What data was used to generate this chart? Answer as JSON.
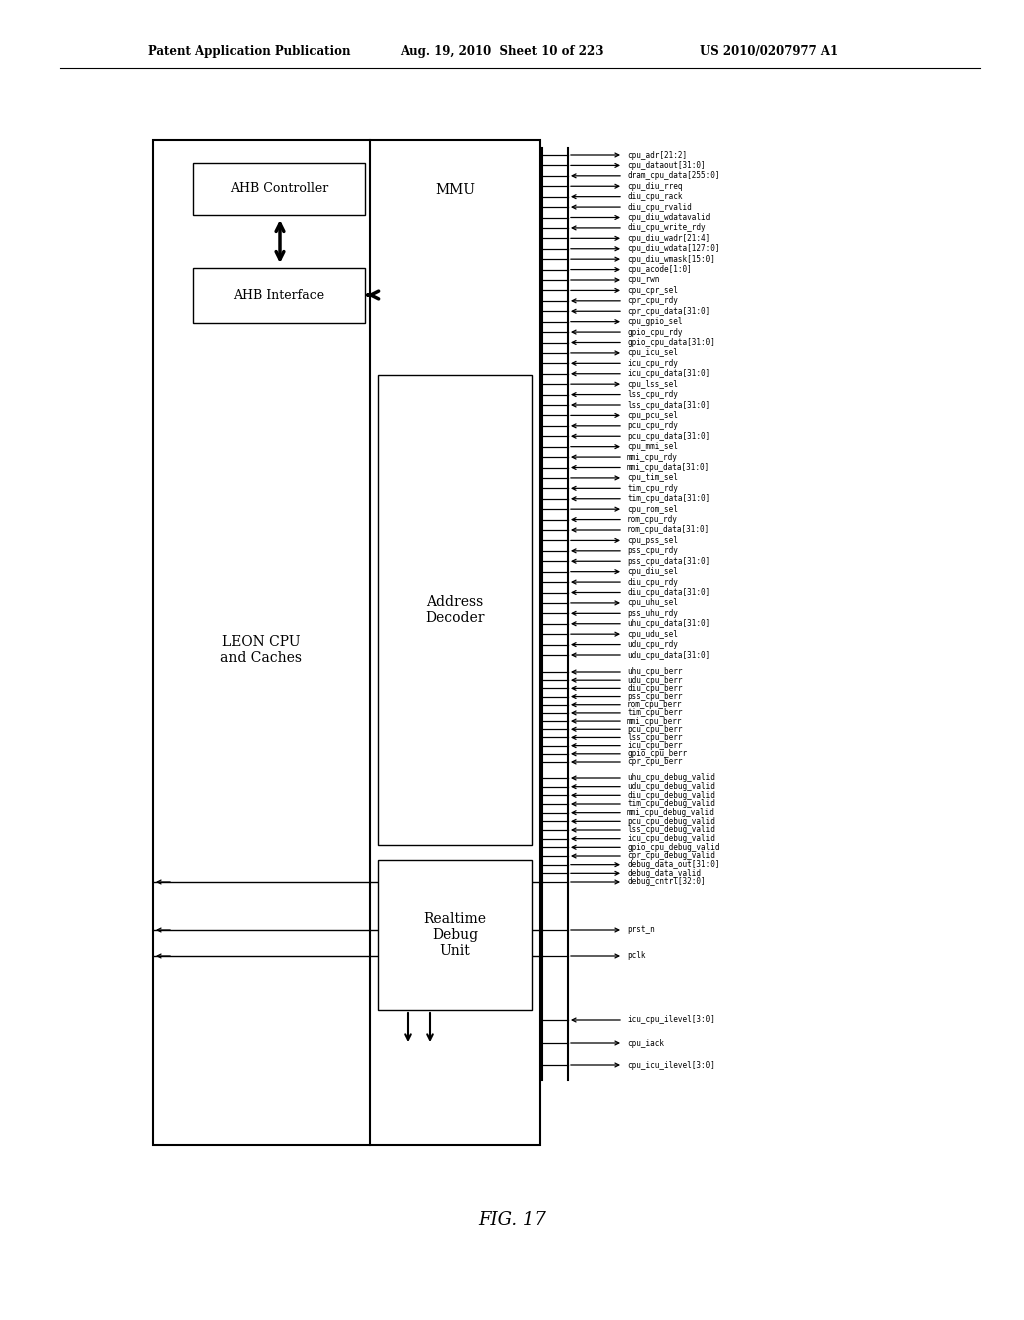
{
  "header_left": "Patent Application Publication",
  "header_mid": "Aug. 19, 2010  Sheet 10 of 223",
  "header_right": "US 2010/0207977 A1",
  "figure_label": "FIG. 17",
  "background_color": "#ffffff",
  "signals": [
    [
      "cpu_adr[21:2]",
      "right"
    ],
    [
      "cpu_dataout[31:0]",
      "right"
    ],
    [
      "dram_cpu_data[255:0]",
      "left"
    ],
    [
      "cpu_diu_rreq",
      "right"
    ],
    [
      "diu_cpu_rack",
      "left"
    ],
    [
      "diu_cpu_rvalid",
      "left"
    ],
    [
      "cpu_diu_wdatavalid",
      "right"
    ],
    [
      "diu_cpu_write_rdy",
      "left"
    ],
    [
      "cpu_diu_wadr[21:4]",
      "right"
    ],
    [
      "cpu_diu_wdata[127:0]",
      "right"
    ],
    [
      "cpu_diu_wmask[15:0]",
      "right"
    ],
    [
      "cpu_acode[1:0]",
      "right"
    ],
    [
      "cpu_rwn",
      "right"
    ],
    [
      "cpu_cpr_sel",
      "right"
    ],
    [
      "cpr_cpu_rdy",
      "left"
    ],
    [
      "cpr_cpu_data[31:0]",
      "left"
    ],
    [
      "cpu_gpio_sel",
      "right"
    ],
    [
      "gpio_cpu_rdy",
      "left"
    ],
    [
      "gpio_cpu_data[31:0]",
      "left"
    ],
    [
      "cpu_icu_sel",
      "right"
    ],
    [
      "icu_cpu_rdy",
      "left"
    ],
    [
      "icu_cpu_data[31:0]",
      "left"
    ],
    [
      "cpu_lss_sel",
      "right"
    ],
    [
      "lss_cpu_rdy",
      "left"
    ],
    [
      "lss_cpu_data[31:0]",
      "left"
    ],
    [
      "cpu_pcu_sel",
      "right"
    ],
    [
      "pcu_cpu_rdy",
      "left"
    ],
    [
      "pcu_cpu_data[31:0]",
      "left"
    ],
    [
      "cpu_mmi_sel",
      "right"
    ],
    [
      "mmi_cpu_rdy",
      "left"
    ],
    [
      "mmi_cpu_data[31:0]",
      "left"
    ],
    [
      "cpu_tim_sel",
      "right"
    ],
    [
      "tim_cpu_rdy",
      "left"
    ],
    [
      "tim_cpu_data[31:0]",
      "left"
    ],
    [
      "cpu_rom_sel",
      "right"
    ],
    [
      "rom_cpu_rdy",
      "left"
    ],
    [
      "rom_cpu_data[31:0]",
      "left"
    ],
    [
      "cpu_pss_sel",
      "right"
    ],
    [
      "pss_cpu_rdy",
      "left"
    ],
    [
      "pss_cpu_data[31:0]",
      "left"
    ],
    [
      "cpu_diu_sel",
      "right"
    ],
    [
      "diu_cpu_rdy",
      "left"
    ],
    [
      "diu_cpu_data[31:0]",
      "left"
    ],
    [
      "cpu_uhu_sel",
      "right"
    ],
    [
      "pss_uhu_rdy",
      "left"
    ],
    [
      "uhu_cpu_data[31:0]",
      "left"
    ],
    [
      "cpu_udu_sel",
      "right"
    ],
    [
      "udu_cpu_rdy",
      "left"
    ],
    [
      "udu_cpu_data[31:0]",
      "left"
    ],
    [
      "uhu_cpu_berr",
      "left"
    ],
    [
      "udu_cpu_berr",
      "left"
    ],
    [
      "diu_cpu_berr",
      "left"
    ],
    [
      "pss_cpu_berr",
      "left"
    ],
    [
      "rom_cpu_berr",
      "left"
    ],
    [
      "tim_cpu_berr",
      "left"
    ],
    [
      "mmi_cpu_berr",
      "left"
    ],
    [
      "pcu_cpu_berr",
      "left"
    ],
    [
      "lss_cpu_berr",
      "left"
    ],
    [
      "icu_cpu_berr",
      "left"
    ],
    [
      "gpio_cpu_berr",
      "left"
    ],
    [
      "cpr_cpu_berr",
      "left"
    ],
    [
      "uhu_cpu_debug_valid",
      "left"
    ],
    [
      "udu_cpu_debug_valid",
      "left"
    ],
    [
      "diu_cpu_debug_valid",
      "left"
    ],
    [
      "tim_cpu_debug_valid",
      "left"
    ],
    [
      "mmi_cpu_debug_valid",
      "left"
    ],
    [
      "pcu_cpu_debug_valid",
      "left"
    ],
    [
      "lss_cpu_debug_valid",
      "left"
    ],
    [
      "icu_cpu_debug_valid",
      "left"
    ],
    [
      "gpio_cpu_debug_valid",
      "left"
    ],
    [
      "cpr_cpu_debug_valid",
      "left"
    ],
    [
      "debug_data_out[31:0]",
      "right"
    ],
    [
      "debug_data_valid",
      "right"
    ],
    [
      "debug_cntrl[32:0]",
      "right"
    ],
    [
      "prst_n",
      "right"
    ],
    [
      "pclk",
      "right"
    ],
    [
      "icu_cpu_ilevel[3:0]",
      "left"
    ],
    [
      "cpu_iack",
      "right"
    ],
    [
      "cpu_icu_ilevel[3:0]",
      "right"
    ]
  ]
}
